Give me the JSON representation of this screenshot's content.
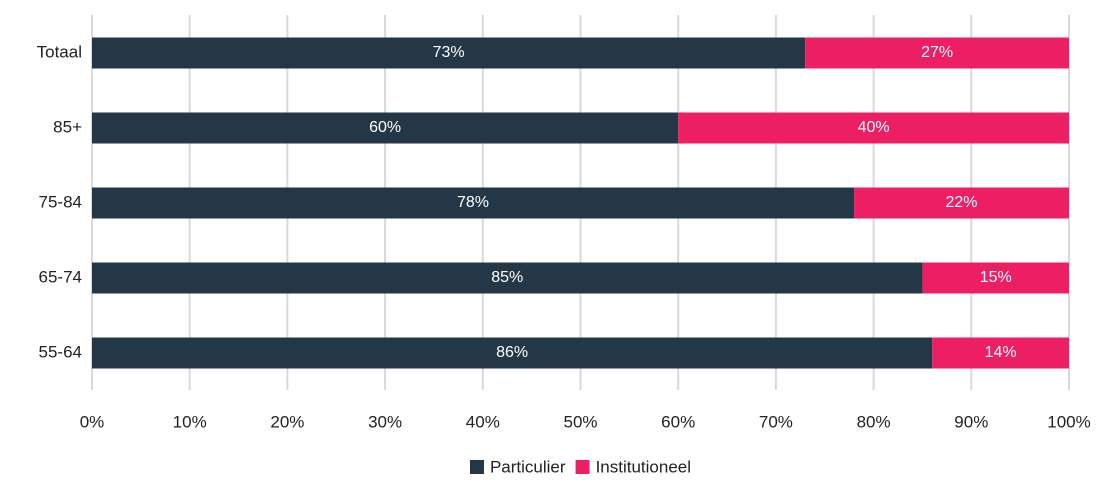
{
  "chart_data": {
    "type": "stacked_bar_horizontal",
    "categories": [
      "Totaal",
      "85+",
      "75-84",
      "65-74",
      "55-64"
    ],
    "series": [
      {
        "name": "Particulier",
        "color": "#243746",
        "values": [
          73,
          60,
          78,
          85,
          86
        ],
        "value_labels": [
          "73%",
          "60%",
          "78%",
          "85%",
          "86%"
        ]
      },
      {
        "name": "Institutioneel",
        "color": "#ec1f64",
        "values": [
          27,
          40,
          22,
          15,
          14
        ],
        "value_labels": [
          "27%",
          "40%",
          "22%",
          "15%",
          "14%"
        ]
      }
    ],
    "xlim": [
      0,
      100
    ],
    "xticks": [
      {
        "value": 0,
        "label": "0%"
      },
      {
        "value": 10,
        "label": "10%"
      },
      {
        "value": 20,
        "label": "20%"
      },
      {
        "value": 30,
        "label": "30%"
      },
      {
        "value": 40,
        "label": "40%"
      },
      {
        "value": 50,
        "label": "50%"
      },
      {
        "value": 60,
        "label": "60%"
      },
      {
        "value": 70,
        "label": "70%"
      },
      {
        "value": 80,
        "label": "80%"
      },
      {
        "value": 90,
        "label": "90%"
      },
      {
        "value": 100,
        "label": "100%"
      }
    ],
    "grid": true,
    "legend": "bottom"
  }
}
